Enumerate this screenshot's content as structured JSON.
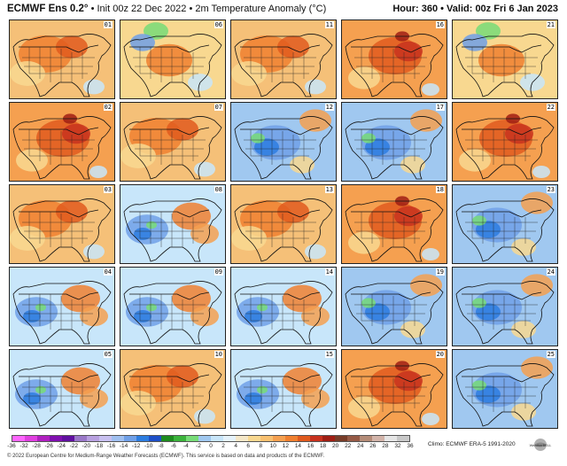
{
  "header": {
    "product": "ECMWF Ens 0.2",
    "degree_symbol": "°",
    "init": "Init 00z 22 Dec 2022",
    "separator": "•",
    "field": "2m Temperature Anomaly (°C)",
    "valid": "Hour: 360 • Valid: 00z Fri 6 Jan 2023"
  },
  "panels": [
    {
      "label": "01",
      "pattern": "warm"
    },
    {
      "label": "06",
      "pattern": "warm-cold-ne"
    },
    {
      "label": "11",
      "pattern": "warm"
    },
    {
      "label": "16",
      "pattern": "warm-hot"
    },
    {
      "label": "21",
      "pattern": "warm-cold-ne"
    },
    {
      "label": "02",
      "pattern": "warm-hot"
    },
    {
      "label": "07",
      "pattern": "warm"
    },
    {
      "label": "12",
      "pattern": "cold"
    },
    {
      "label": "17",
      "pattern": "cold"
    },
    {
      "label": "22",
      "pattern": "warm-hot"
    },
    {
      "label": "03",
      "pattern": "warm"
    },
    {
      "label": "08",
      "pattern": "cold-west"
    },
    {
      "label": "13",
      "pattern": "warm"
    },
    {
      "label": "18",
      "pattern": "warm-hot"
    },
    {
      "label": "23",
      "pattern": "cold"
    },
    {
      "label": "04",
      "pattern": "cold-west"
    },
    {
      "label": "09",
      "pattern": "cold-west"
    },
    {
      "label": "14",
      "pattern": "cold-west"
    },
    {
      "label": "19",
      "pattern": "cold"
    },
    {
      "label": "24",
      "pattern": "cold"
    },
    {
      "label": "05",
      "pattern": "cold-west"
    },
    {
      "label": "10",
      "pattern": "warm"
    },
    {
      "label": "15",
      "pattern": "cold-west"
    },
    {
      "label": "20",
      "pattern": "warm-hot"
    },
    {
      "label": "25",
      "pattern": "cold"
    }
  ],
  "legend": {
    "ticks": [
      "-36",
      "-32",
      "-28",
      "-26",
      "-24",
      "-22",
      "-20",
      "-18",
      "-16",
      "-14",
      "-12",
      "-10",
      "-8",
      "-6",
      "-4",
      "-2",
      "0",
      "2",
      "4",
      "6",
      "8",
      "10",
      "12",
      "14",
      "16",
      "18",
      "20",
      "22",
      "24",
      "26",
      "28",
      "32",
      "36"
    ],
    "colors": [
      "#ff66ff",
      "#e040e0",
      "#b020c0",
      "#8010b0",
      "#6010a0",
      "#9a78c8",
      "#b8a0e0",
      "#c8c0f0",
      "#a0c0f0",
      "#70a0e8",
      "#2d7de0",
      "#1e50c8",
      "#1e8c1e",
      "#3cb43c",
      "#78dc78",
      "#a0c8f0",
      "#c8e6fa",
      "#e6f3fc",
      "#f5e8c8",
      "#f8d890",
      "#f8c070",
      "#f5a050",
      "#f08030",
      "#e05a1e",
      "#c8321e",
      "#a01e14",
      "#783c28",
      "#965a46",
      "#b48c78",
      "#d2b4aa",
      "#e6e6e6",
      "#c8c8c8"
    ]
  },
  "climo": "Climo: ECMWF ERA-5 1991-2020",
  "footer": "© 2022 European Centre for Medium-Range Weather Forecasts (ECMWF). This service is based on data and products of the ECMWF.",
  "logo_text": "WeatherBELL"
}
